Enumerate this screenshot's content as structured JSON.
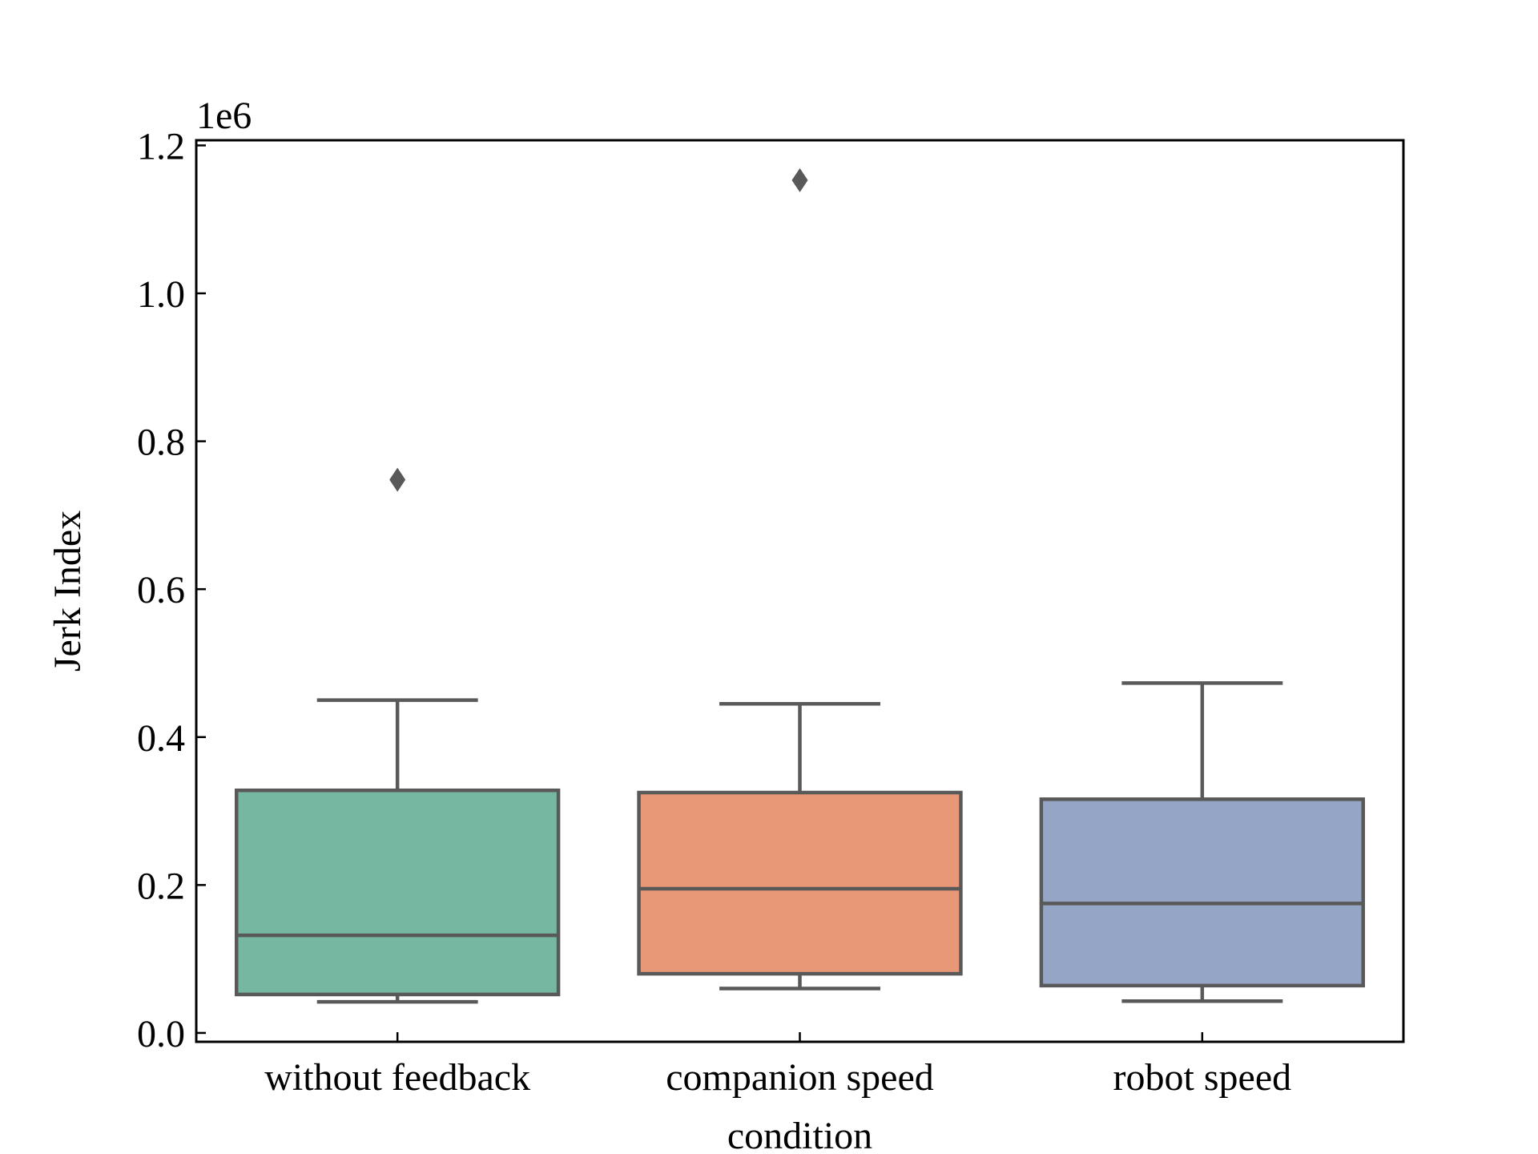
{
  "chart_data": {
    "type": "box",
    "categories": [
      "without feedback",
      "companion speed",
      "robot speed"
    ],
    "boxes": [
      {
        "category": "without feedback",
        "whislo": 42000,
        "q1": 52000,
        "med": 132000,
        "q3": 328000,
        "whishi": 450000,
        "fliers": [
          748000
        ],
        "color": "#76b7a2"
      },
      {
        "category": "companion speed",
        "whislo": 60000,
        "q1": 80000,
        "med": 195000,
        "q3": 325000,
        "whishi": 445000,
        "fliers": [
          1153000
        ],
        "color": "#e99877"
      },
      {
        "category": "robot speed",
        "whislo": 43000,
        "q1": 64000,
        "med": 175000,
        "q3": 316000,
        "whishi": 473000,
        "fliers": [],
        "color": "#95a5c5"
      }
    ],
    "xlabel": "condition",
    "ylabel": "Jerk Index",
    "offset_label": "1e6",
    "yticks": [
      0,
      200000,
      400000,
      600000,
      800000,
      1000000,
      1200000
    ],
    "ytick_labels": [
      "0.0",
      "0.2",
      "0.4",
      "0.6",
      "0.8",
      "1.0",
      "1.2"
    ],
    "ylim": [
      -12000,
      1207000
    ],
    "grid": false,
    "legend": "none",
    "edge_color": "#595959",
    "flier_color": "#595959",
    "flier_marker": "diamond"
  }
}
